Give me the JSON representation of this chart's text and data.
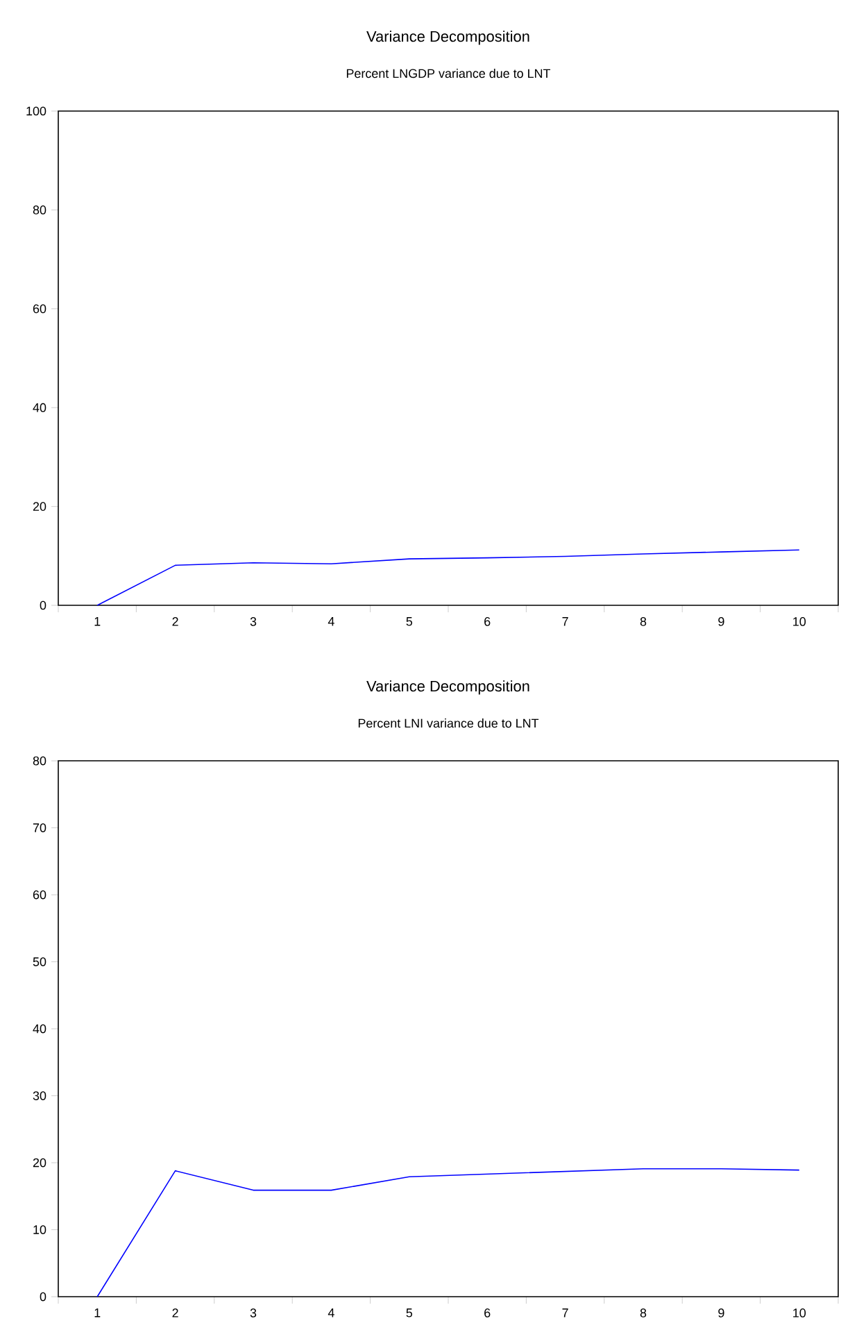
{
  "chart_data": [
    {
      "type": "line",
      "title": "Variance Decomposition",
      "subtitle": "Percent LNGDP variance due to LNT",
      "categories": [
        "1",
        "2",
        "3",
        "4",
        "5",
        "6",
        "7",
        "8",
        "9",
        "10"
      ],
      "values": [
        0,
        8.1,
        8.6,
        8.4,
        9.4,
        9.6,
        9.9,
        10.4,
        10.8,
        11.2
      ],
      "color": "#0000ff",
      "ylim": [
        0,
        100
      ],
      "yticks": [
        0,
        20,
        40,
        60,
        80,
        100
      ]
    },
    {
      "type": "line",
      "title": "Variance Decomposition",
      "subtitle": "Percent LNI variance due to LNT",
      "categories": [
        "1",
        "2",
        "3",
        "4",
        "5",
        "6",
        "7",
        "8",
        "9",
        "10"
      ],
      "values": [
        0,
        18.8,
        15.9,
        15.9,
        17.9,
        18.3,
        18.7,
        19.1,
        19.1,
        18.9
      ],
      "color": "#0000ff",
      "ylim": [
        0,
        80
      ],
      "yticks": [
        0,
        10,
        20,
        30,
        40,
        50,
        60,
        70,
        80
      ]
    }
  ]
}
